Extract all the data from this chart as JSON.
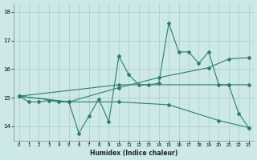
{
  "xlabel": "Humidex (Indice chaleur)",
  "bg_color": "#cce8e8",
  "grid_color": "#aacccc",
  "line_color": "#2e7d6e",
  "xlim": [
    -0.5,
    23.5
  ],
  "ylim": [
    13.5,
    18.3
  ],
  "yticks": [
    14,
    15,
    16,
    17,
    18
  ],
  "xticks": [
    0,
    1,
    2,
    3,
    4,
    5,
    6,
    7,
    8,
    9,
    10,
    11,
    12,
    13,
    14,
    15,
    16,
    17,
    18,
    19,
    20,
    21,
    22,
    23
  ],
  "series1": {
    "x": [
      0,
      1,
      2,
      3,
      4,
      5,
      6,
      7,
      8,
      9,
      10,
      11,
      12,
      13,
      14,
      15,
      16,
      17,
      18,
      19,
      20,
      21,
      22,
      23
    ],
    "y": [
      15.05,
      14.85,
      14.85,
      14.9,
      14.85,
      14.85,
      13.75,
      14.35,
      14.95,
      14.15,
      16.45,
      15.8,
      15.45,
      15.45,
      15.5,
      17.6,
      16.6,
      16.6,
      16.2,
      16.6,
      15.45,
      15.45,
      14.45,
      13.95
    ]
  },
  "series2": {
    "x": [
      0,
      5,
      10,
      14,
      19,
      21,
      23
    ],
    "y": [
      15.05,
      14.85,
      15.35,
      15.7,
      16.05,
      16.35,
      16.4
    ]
  },
  "series3": {
    "x": [
      0,
      5,
      10,
      15,
      20,
      23
    ],
    "y": [
      15.05,
      14.85,
      14.85,
      14.75,
      14.2,
      13.95
    ]
  },
  "series4": {
    "x": [
      0,
      10,
      21,
      23
    ],
    "y": [
      15.05,
      15.45,
      15.45,
      15.45
    ]
  }
}
